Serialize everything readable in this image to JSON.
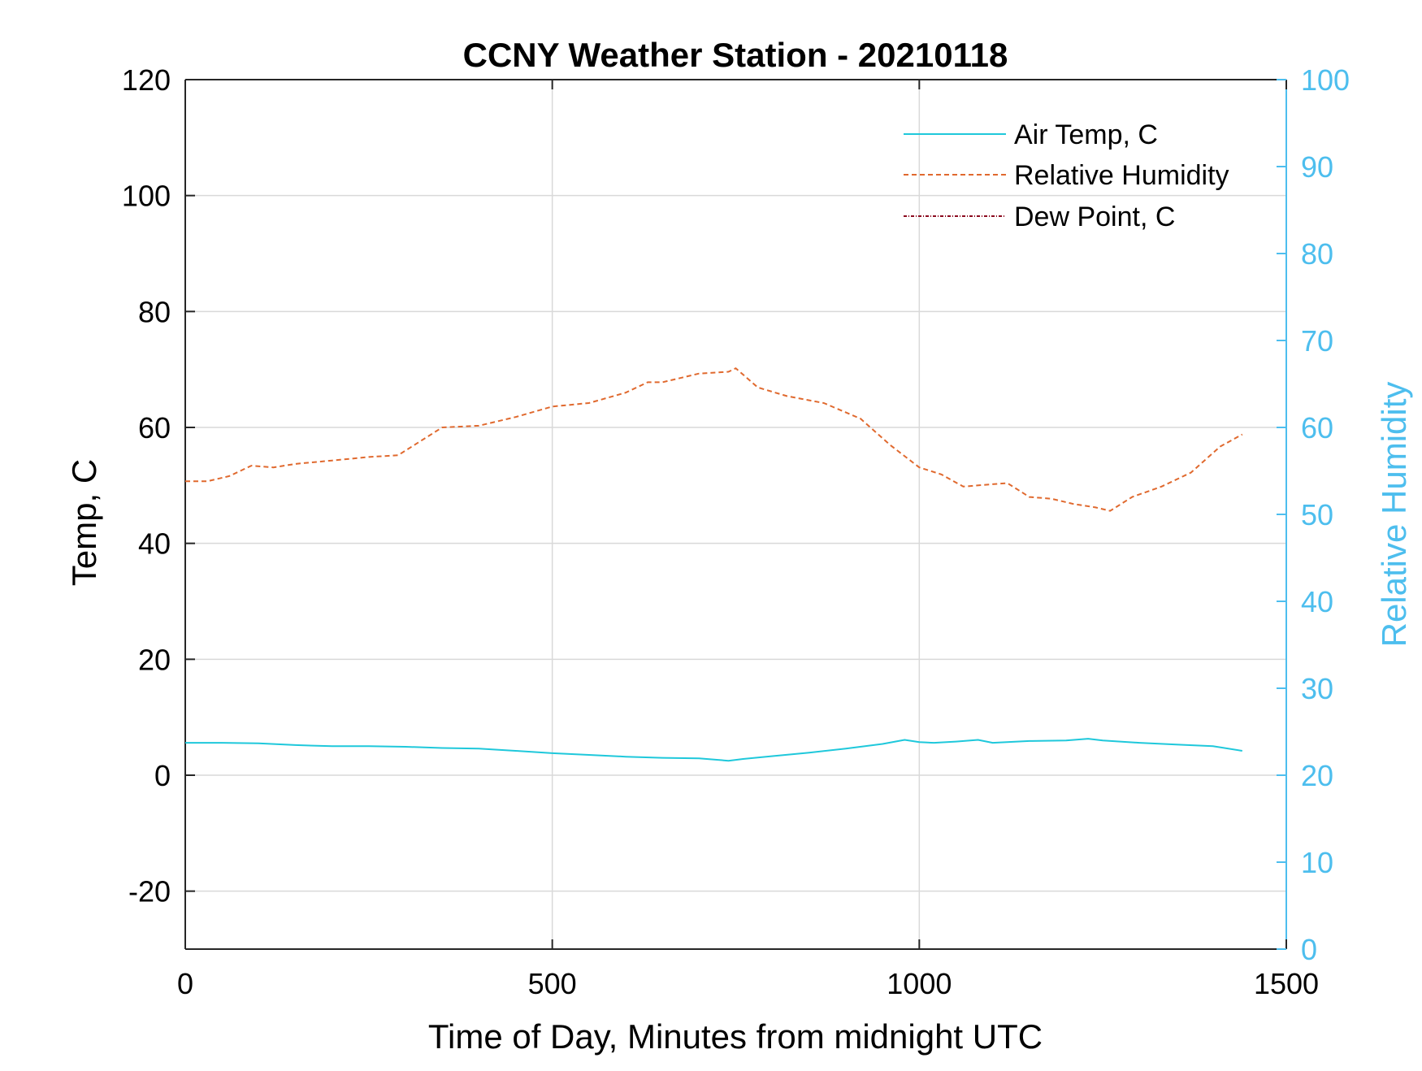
{
  "chart_data": {
    "type": "line",
    "title": "CCNY Weather Station - 20210118",
    "xlabel": "Time of Day, Minutes from midnight UTC",
    "ylabel_left": "Temp, C",
    "ylabel_right": "Relative Humidity",
    "xlim": [
      0,
      1500
    ],
    "ylim_left": [
      -30,
      120
    ],
    "ylim_right": [
      0,
      100
    ],
    "xticks": [
      0,
      500,
      1000,
      1500
    ],
    "yticks_left": [
      -20,
      0,
      20,
      40,
      60,
      80,
      100,
      120
    ],
    "yticks_right": [
      0,
      10,
      20,
      30,
      40,
      50,
      60,
      70,
      80,
      90,
      100
    ],
    "grid": true,
    "legend_position": "top-right",
    "colors": {
      "air_temp": "#1FC8DB",
      "relative_humidity": "#E0692E",
      "dew_point": "#8B0A1E",
      "right_axis": "#4DBEEE",
      "grid": "#D9D9D9"
    },
    "series": [
      {
        "name": "Air Temp, C",
        "axis": "left",
        "style": "solid",
        "x": [
          0,
          50,
          100,
          150,
          200,
          250,
          300,
          350,
          400,
          450,
          500,
          550,
          600,
          650,
          700,
          740,
          760,
          800,
          850,
          900,
          950,
          980,
          1000,
          1020,
          1050,
          1080,
          1100,
          1150,
          1200,
          1230,
          1250,
          1300,
          1350,
          1400,
          1440
        ],
        "y": [
          5.6,
          5.6,
          5.5,
          5.2,
          5.0,
          5.0,
          4.9,
          4.7,
          4.6,
          4.2,
          3.8,
          3.5,
          3.2,
          3.0,
          2.9,
          2.5,
          2.8,
          3.3,
          3.9,
          4.6,
          5.4,
          6.1,
          5.7,
          5.6,
          5.8,
          6.1,
          5.6,
          5.9,
          6.0,
          6.3,
          6.0,
          5.6,
          5.3,
          5.0,
          4.2
        ]
      },
      {
        "name": "Relative Humidity",
        "axis": "right",
        "style": "dashed",
        "x": [
          0,
          30,
          60,
          90,
          120,
          150,
          200,
          250,
          290,
          320,
          350,
          400,
          450,
          500,
          550,
          600,
          630,
          650,
          700,
          740,
          750,
          780,
          820,
          870,
          920,
          960,
          1000,
          1030,
          1060,
          1090,
          1120,
          1150,
          1180,
          1210,
          1240,
          1260,
          1290,
          1330,
          1370,
          1410,
          1440
        ],
        "y": [
          53.8,
          53.8,
          54.4,
          55.6,
          55.4,
          55.8,
          56.2,
          56.6,
          56.8,
          58.4,
          60.0,
          60.2,
          61.2,
          62.4,
          62.8,
          64.0,
          65.2,
          65.2,
          66.2,
          66.4,
          66.8,
          64.6,
          63.6,
          62.8,
          61.0,
          58.0,
          55.4,
          54.6,
          53.2,
          53.4,
          53.6,
          52.0,
          51.8,
          51.2,
          50.8,
          50.4,
          52.0,
          53.2,
          54.8,
          57.8,
          59.2
        ]
      },
      {
        "name": "Dew Point, C",
        "axis": "left",
        "style": "dash-dot",
        "x": [],
        "y": []
      }
    ]
  }
}
